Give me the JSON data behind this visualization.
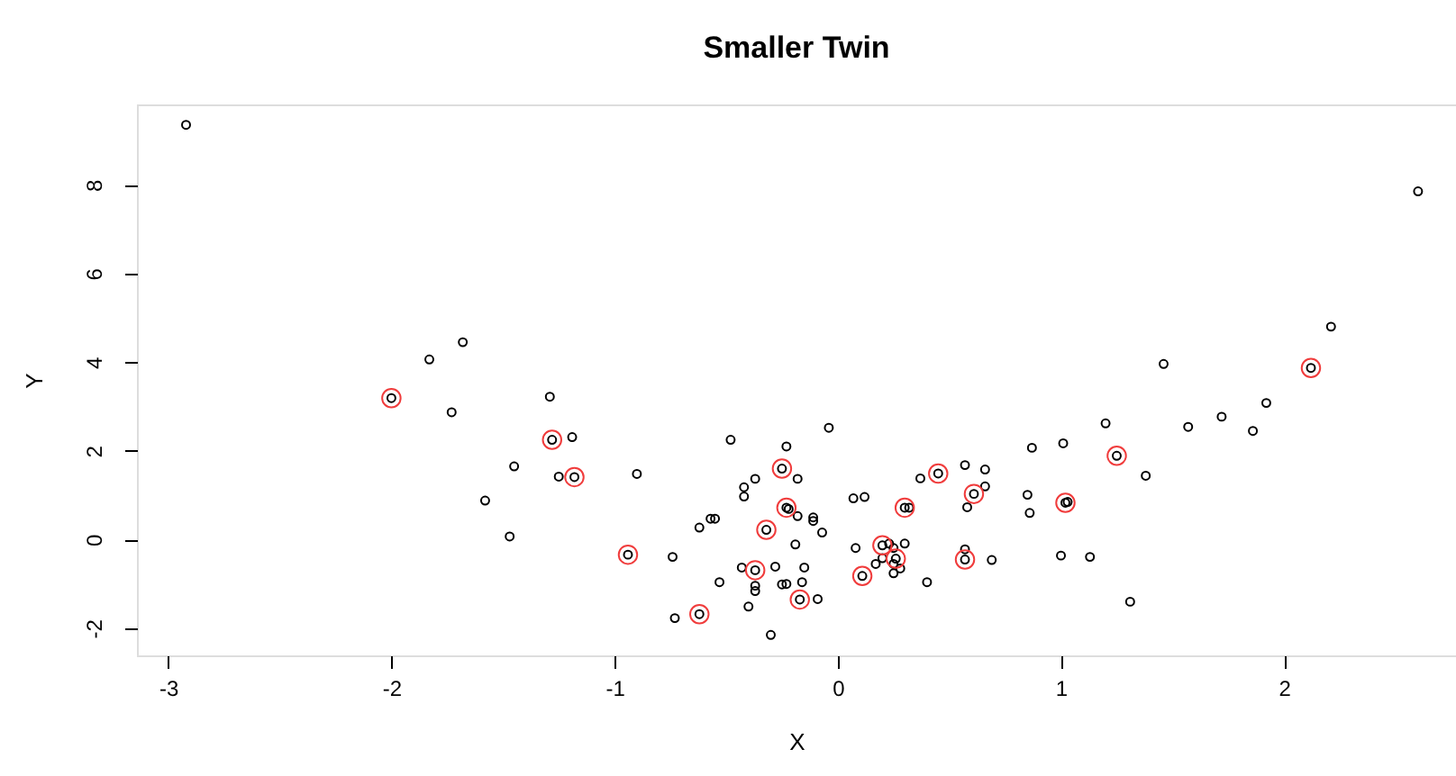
{
  "chart_data": {
    "type": "scatter",
    "title": "Smaller Twin",
    "xlabel": "X",
    "ylabel": "Y",
    "xlim": [
      -3.14,
      2.77
    ],
    "ylim": [
      -2.61,
      9.81
    ],
    "xticks": [
      -3,
      -2,
      -1,
      0,
      1,
      2
    ],
    "yticks": [
      -2,
      0,
      2,
      4,
      6,
      8
    ],
    "grid": false,
    "marker": "circle",
    "series": [
      {
        "color": "#000000",
        "x": [
          -2.92,
          2.6,
          -2.0,
          -1.83,
          -1.68,
          -1.73,
          -1.29,
          -1.28,
          -1.19,
          -1.45,
          -1.25,
          -1.18,
          -1.58,
          -1.47,
          -0.94,
          -0.9,
          -0.74,
          -0.73,
          -0.62,
          -0.62,
          -0.57,
          -0.55,
          -0.53,
          -0.48,
          -0.42,
          -0.42,
          -0.37,
          -0.43,
          -0.37,
          -0.37,
          -0.37,
          -0.4,
          -0.32,
          -0.3,
          -0.28,
          -0.25,
          -0.23,
          -0.18,
          -0.23,
          -0.22,
          -0.18,
          -0.11,
          -0.11,
          -0.07,
          -0.19,
          -0.15,
          -0.25,
          -0.23,
          -0.16,
          -0.17,
          -0.09,
          -0.04,
          0.07,
          0.12,
          0.08,
          0.11,
          0.17,
          0.2,
          0.26,
          0.23,
          0.25,
          0.3,
          0.25,
          0.28,
          0.25,
          0.2,
          0.3,
          0.32,
          0.37,
          0.45,
          0.4,
          0.57,
          0.66,
          0.61,
          0.66,
          0.58,
          0.57,
          0.57,
          0.69,
          0.87,
          0.85,
          0.86,
          1.01,
          1.02,
          1.03,
          1.0,
          1.13,
          1.31,
          1.2,
          1.25,
          1.38,
          1.46,
          1.57,
          1.72,
          1.86,
          1.92,
          2.12,
          2.21
        ],
        "values": [
          9.35,
          7.85,
          3.19,
          4.06,
          4.45,
          2.87,
          3.22,
          2.25,
          2.31,
          1.65,
          1.42,
          1.41,
          0.88,
          0.07,
          -0.34,
          1.48,
          -0.39,
          -1.77,
          -1.68,
          0.27,
          0.47,
          0.47,
          -0.96,
          2.25,
          1.18,
          0.97,
          1.37,
          -0.63,
          -0.69,
          -1.04,
          -1.16,
          -1.51,
          0.22,
          -2.15,
          -0.61,
          1.6,
          2.1,
          1.37,
          0.72,
          0.69,
          0.53,
          0.5,
          0.42,
          0.16,
          -0.11,
          -0.63,
          -1.01,
          -1.0,
          -0.96,
          -1.35,
          -1.34,
          2.52,
          0.93,
          0.96,
          -0.19,
          -0.82,
          -0.55,
          -0.13,
          -0.43,
          -0.09,
          -0.19,
          -0.09,
          -0.55,
          -0.65,
          -0.76,
          -0.42,
          0.72,
          0.72,
          1.38,
          1.49,
          -0.96,
          1.68,
          1.58,
          1.03,
          1.2,
          0.73,
          -0.45,
          -0.22,
          -0.46,
          2.07,
          1.01,
          0.6,
          2.17,
          0.83,
          0.85,
          -0.36,
          -0.39,
          -1.4,
          2.62,
          1.89,
          1.44,
          3.96,
          2.54,
          2.77,
          2.45,
          3.08,
          3.87,
          4.8
        ]
      },
      {
        "color": "#f03c3c",
        "x": [
          -2.0,
          -1.28,
          -1.18,
          -0.94,
          -0.62,
          -0.37,
          -0.32,
          -0.25,
          -0.23,
          -0.17,
          0.11,
          0.2,
          0.26,
          0.3,
          0.45,
          0.61,
          0.57,
          1.02,
          1.25,
          2.12
        ],
        "values": [
          3.19,
          2.25,
          1.41,
          -0.34,
          -1.68,
          -0.69,
          0.22,
          1.6,
          0.72,
          -1.35,
          -0.82,
          -0.13,
          -0.43,
          0.72,
          1.49,
          1.03,
          -0.45,
          0.83,
          1.89,
          3.87
        ]
      }
    ]
  }
}
